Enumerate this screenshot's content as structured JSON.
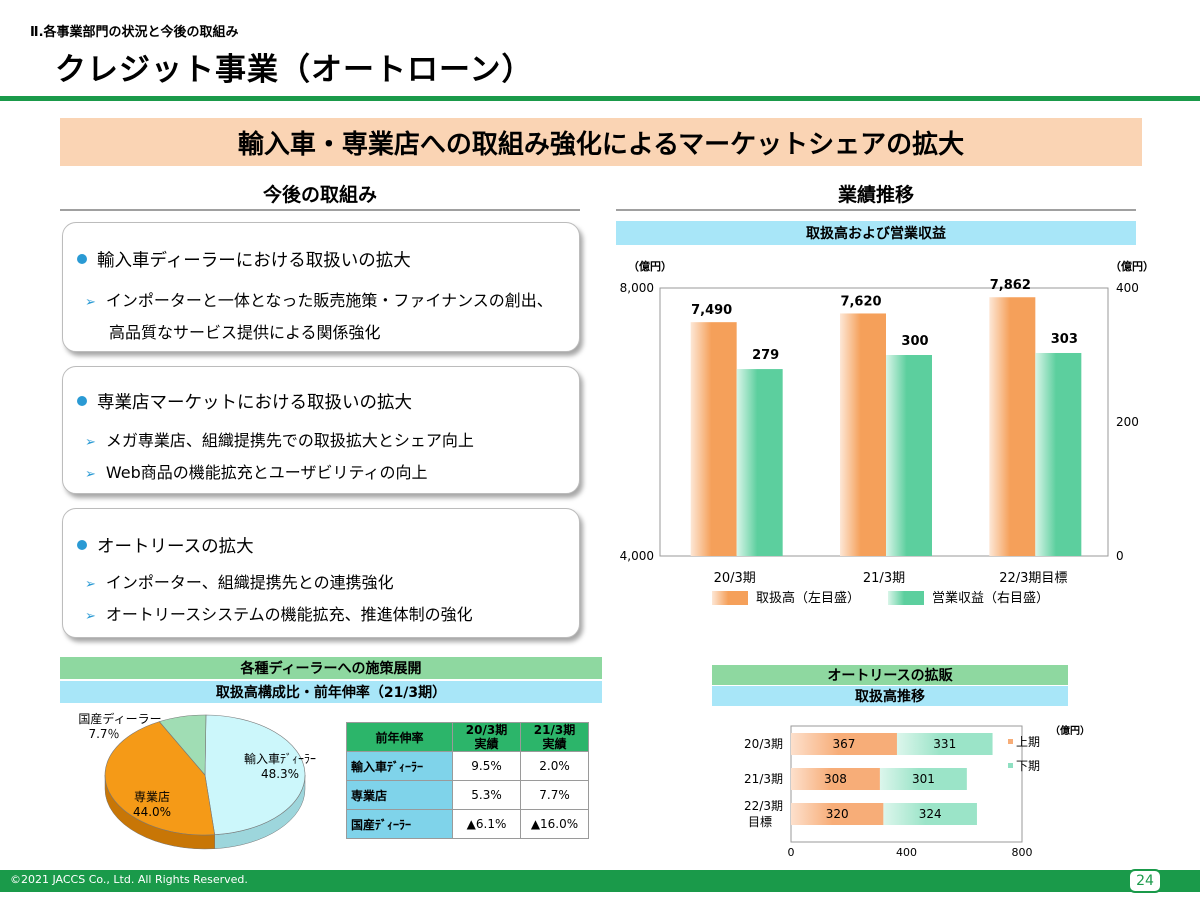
{
  "header": {
    "section": "Ⅱ.各事業部門の状況と今後の取組み",
    "title": "クレジット事業（オートローン）"
  },
  "banner": "輸入車・専業店への取組み強化によるマーケットシェアの拡大",
  "left_column": {
    "heading": "今後の取組み",
    "boxes": [
      {
        "title": "輸入車ディーラーにおける取扱いの拡大",
        "items": [
          "インポーターと一体となった販売施策・ファイナンスの創出、",
          "高品質なサービス提供による関係強化"
        ]
      },
      {
        "title": "専業店マーケットにおける取扱いの拡大",
        "items": [
          "メガ専業店、組織提携先での取扱拡大とシェア向上",
          "Web商品の機能拡充とユーザビリティの向上"
        ]
      },
      {
        "title": "オートリースの拡大",
        "items": [
          "インポーター、組織提携先との連携強化",
          "オートリースシステムの機能拡充、推進体制の強化"
        ]
      }
    ]
  },
  "right_column": {
    "heading": "業績推移"
  },
  "dealer_section": {
    "title": "各種ディーラーへの施策展開",
    "subtitle": "取扱高構成比・前年伸率（21/3期）"
  },
  "growth_table": {
    "corner": "前年伸率",
    "col1": [
      "20/3期",
      "実績"
    ],
    "col2": [
      "21/3期",
      "実績"
    ],
    "rows": [
      {
        "label": "輸入車ﾃﾞｨｰﾗｰ",
        "v1": "9.5%",
        "v2": "2.0%"
      },
      {
        "label": "専業店",
        "v1": "5.3%",
        "v2": "7.7%"
      },
      {
        "label": "国産ﾃﾞｨｰﾗｰ",
        "v1": "▲6.1%",
        "v2": "▲16.0%"
      }
    ]
  },
  "footer": {
    "copyright": "©2021 JACCS Co., Ltd. All Rights Reserved.",
    "page": "24"
  },
  "colors": {
    "orange": "#f7a04e",
    "teal": "#5ed0a0",
    "green": "#1a9a4a"
  },
  "chart_data": [
    {
      "type": "bar",
      "title": "取扱高および営業収益",
      "ylabel_left": "（億円）",
      "ylabel_right": "（億円）",
      "categories": [
        "20/3期",
        "21/3期",
        "22/3期目標"
      ],
      "ylim": [
        4000,
        8000
      ],
      "ylim_right": [
        0,
        400
      ],
      "yticks": [
        "8,000",
        "4,000"
      ],
      "yticks_right": [
        "400",
        "200",
        "0"
      ],
      "series": [
        {
          "name": "取扱高（左目盛）",
          "axis": "left",
          "values": [
            7490,
            7620,
            7862
          ],
          "labels": [
            "7,490",
            "7,620",
            "7,862"
          ]
        },
        {
          "name": "営業収益（右目盛）",
          "axis": "right",
          "values": [
            279,
            300,
            303
          ],
          "labels": [
            "279",
            "300",
            "303"
          ]
        }
      ]
    },
    {
      "type": "pie",
      "title": "取扱高構成比（21/3期）",
      "slices": [
        {
          "label": "輸入車ﾃﾞｨｰﾗｰ",
          "value": 48.3,
          "value_label": "48.3%"
        },
        {
          "label": "専業店",
          "value": 44.0,
          "value_label": "44.0%"
        },
        {
          "label": "国産ディーラー",
          "value": 7.7,
          "value_label": "7.7％"
        }
      ]
    },
    {
      "type": "bar",
      "orientation": "horizontal-stacked",
      "title": "オートリースの拡販",
      "subtitle": "取扱高推移",
      "unit": "（億円）",
      "categories": [
        [
          "20/3期"
        ],
        [
          "21/3期"
        ],
        [
          "22/3期",
          "目標"
        ]
      ],
      "xlim": [
        0,
        800
      ],
      "xticks": [
        "0",
        "400",
        "800"
      ],
      "series": [
        {
          "name": "上期",
          "values": [
            367,
            308,
            320
          ]
        },
        {
          "name": "下期",
          "values": [
            331,
            301,
            324
          ]
        }
      ]
    }
  ]
}
